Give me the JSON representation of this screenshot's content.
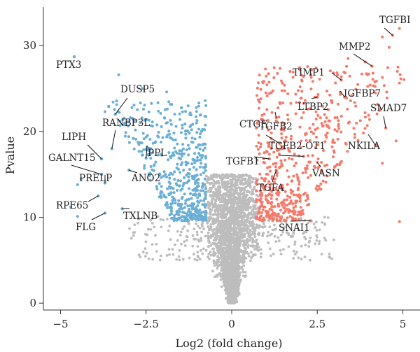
{
  "chart_data": {
    "type": "scatter",
    "title": "",
    "xlabel": "Log2 (fold change)",
    "ylabel": "Pvalue",
    "xlim": [
      -5.5,
      5.5
    ],
    "ylim": [
      -0.8,
      34.5
    ],
    "xticks": [
      -5,
      -2.5,
      0,
      2.5,
      5
    ],
    "xtick_labels": [
      "−5",
      "−2.5",
      "0",
      "2.5",
      "5"
    ],
    "yticks": [
      0,
      10,
      20,
      30
    ],
    "ytick_labels": [
      "0",
      "10",
      "20",
      "30"
    ],
    "grid": false,
    "legend": "none",
    "colors": {
      "down": "#6baed6",
      "up": "#f47a6b",
      "ns": "#bdbdbd"
    },
    "labeled_points": [
      {
        "gene": "PTX3",
        "x": -4.6,
        "y": 28.7,
        "group": "down"
      },
      {
        "gene": "DUSP5",
        "x": -3.4,
        "y": 22.0,
        "group": "down"
      },
      {
        "gene": "RANBP3L",
        "x": -3.5,
        "y": 18.0,
        "group": "down"
      },
      {
        "gene": "LIPH",
        "x": -3.8,
        "y": 16.8,
        "group": "down"
      },
      {
        "gene": "PPL",
        "x": -2.5,
        "y": 16.9,
        "group": "down"
      },
      {
        "gene": "GALNT15",
        "x": -3.8,
        "y": 15.0,
        "group": "down"
      },
      {
        "gene": "PRELP",
        "x": -3.7,
        "y": 14.0,
        "group": "down"
      },
      {
        "gene": "ANO2",
        "x": -3.0,
        "y": 15.5,
        "group": "down"
      },
      {
        "gene": "RPE65",
        "x": -3.9,
        "y": 12.5,
        "group": "down"
      },
      {
        "gene": "FLG",
        "x": -3.7,
        "y": 10.5,
        "group": "down"
      },
      {
        "gene": "TXLNB",
        "x": -3.2,
        "y": 11.0,
        "group": "down"
      },
      {
        "gene": "TGFBI",
        "x": 4.7,
        "y": 31.2,
        "group": "up"
      },
      {
        "gene": "MMP2",
        "x": 4.1,
        "y": 27.6,
        "group": "up"
      },
      {
        "gene": "TIMP1",
        "x": 3.2,
        "y": 26.0,
        "group": "up"
      },
      {
        "gene": "IGFBP7",
        "x": 3.3,
        "y": 24.0,
        "group": "up"
      },
      {
        "gene": "LTBP2",
        "x": 2.5,
        "y": 24.0,
        "group": "up"
      },
      {
        "gene": "SMAD7",
        "x": 4.5,
        "y": 20.4,
        "group": "up"
      },
      {
        "gene": "CTGF",
        "x": 1.3,
        "y": 21.6,
        "group": "up"
      },
      {
        "gene": "TGFB2",
        "x": 1.4,
        "y": 18.6,
        "group": "up"
      },
      {
        "gene": "NKILA",
        "x": 4.2,
        "y": 18.4,
        "group": "up"
      },
      {
        "gene": "TGFB1",
        "x": 1.1,
        "y": 16.8,
        "group": "up"
      },
      {
        "gene": "TGFB2-OT1",
        "x": 2.1,
        "y": 17.1,
        "group": "up"
      },
      {
        "gene": "VASN",
        "x": 2.5,
        "y": 16.4,
        "group": "up"
      },
      {
        "gene": "TGFA",
        "x": 1.3,
        "y": 15.5,
        "group": "up"
      },
      {
        "gene": "SNAI1",
        "x": 2.3,
        "y": 9.6,
        "group": "up"
      }
    ]
  }
}
